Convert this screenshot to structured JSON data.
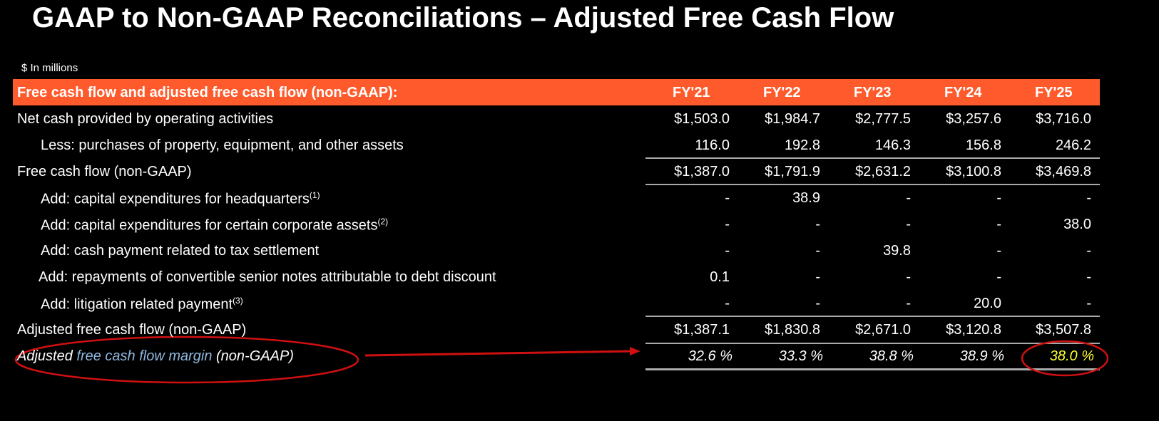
{
  "header": {
    "title": "GAAP to Non-GAAP Reconciliations – Adjusted Free Cash Flow",
    "units": "$ In millions"
  },
  "table": {
    "heading": "Free cash flow and adjusted free cash flow (non-GAAP):",
    "columns": [
      "FY'21",
      "FY'22",
      "FY'23",
      "FY'24",
      "FY'25"
    ],
    "rows": [
      {
        "label": "Net cash provided by operating activities",
        "values": [
          "$1,503.0",
          "$1,984.7",
          "$2,777.5",
          "$3,257.6",
          "$3,716.0"
        ]
      },
      {
        "label": "Less: purchases of property, equipment, and other assets",
        "values": [
          "116.0",
          "192.8",
          "146.3",
          "156.8",
          "246.2"
        ]
      },
      {
        "label": "Free cash flow (non-GAAP)",
        "values": [
          "$1,387.0",
          "$1,791.9",
          "$2,631.2",
          "$3,100.8",
          "$3,469.8"
        ]
      },
      {
        "label": "Add: capital expenditures for headquarters",
        "note": "(1)",
        "values": [
          "-",
          "38.9",
          "-",
          "-",
          "-"
        ]
      },
      {
        "label": "Add: capital expenditures for certain corporate assets",
        "note": "(2)",
        "values": [
          "-",
          "-",
          "-",
          "-",
          "38.0"
        ]
      },
      {
        "label": "Add: cash payment related to tax settlement",
        "values": [
          "-",
          "-",
          "39.8",
          "-",
          "-"
        ]
      },
      {
        "label": "Add: repayments of convertible senior notes attributable to debt discount",
        "values": [
          "0.1",
          "-",
          "-",
          "-",
          "-"
        ]
      },
      {
        "label": "Add: litigation related payment",
        "note": "(3)",
        "values": [
          "-",
          "-",
          "-",
          "20.0",
          "-"
        ]
      },
      {
        "label": "Adjusted free cash flow (non-GAAP)",
        "values": [
          "$1,387.1",
          "$1,830.8",
          "$2,671.0",
          "$3,120.8",
          "$3,507.8"
        ]
      }
    ],
    "margin": {
      "label_parts": [
        "Adjusted ",
        "free cash flow margin",
        " (non-GAAP)"
      ],
      "values": [
        "32.6 %",
        "33.3 %",
        "38.8 %",
        "38.9 %",
        "38.0 %"
      ]
    }
  }
}
